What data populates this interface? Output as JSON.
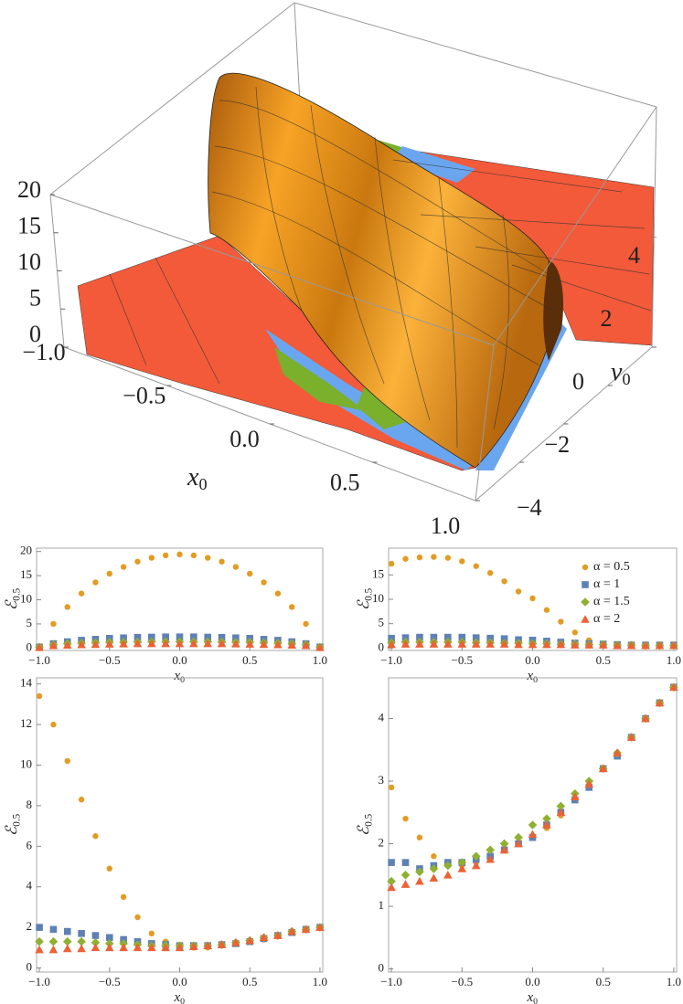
{
  "chart_data": [
    {
      "type": "surface3d",
      "xlim": [
        -1,
        1
      ],
      "xticks": [
        {
          "value": -1,
          "label": "−1.0"
        },
        {
          "value": -0.5,
          "label": "−0.5"
        },
        {
          "value": 0,
          "label": "0.0"
        },
        0.5,
        {
          "value": 1,
          "label": "1.0"
        }
      ],
      "ylim": [
        -4,
        4
      ],
      "yticks": [
        {
          "value": -4,
          "label": "−4"
        },
        {
          "value": -2,
          "label": "−2"
        },
        0,
        2,
        4
      ],
      "zlim": [
        0,
        20
      ],
      "zticks": [
        0,
        5,
        10,
        15,
        20
      ],
      "xlabel": "x",
      "xlabel_sub": "0",
      "ylabel": "v",
      "ylabel_sub": "0"
    },
    {
      "type": "scatter",
      "x": [
        -1,
        -0.9,
        -0.8,
        -0.7,
        -0.6,
        -0.5,
        -0.4,
        -0.3,
        -0.2,
        -0.1,
        0,
        0.1,
        0.2,
        0.3,
        0.4,
        0.5,
        0.6,
        0.7,
        0.8,
        0.9,
        1
      ],
      "xlim": [
        -1.02,
        1.02
      ],
      "xticks": [
        {
          "value": -1,
          "label": "−1.0"
        },
        {
          "value": -0.5,
          "label": "−0.5"
        },
        {
          "value": 0,
          "label": "0.0"
        },
        0.5,
        {
          "value": 1,
          "label": "1.0"
        }
      ],
      "ylim": [
        -0.5,
        20.7
      ],
      "yticks": [
        0,
        5,
        10,
        15,
        20
      ],
      "xlabel": "x",
      "xlabel_sub": "0",
      "ylabel": "ℰ",
      "ylabel_sub": "0.5",
      "series": [
        {
          "color": "#e19c24",
          "marker": "circle",
          "values": [
            0.2,
            5.0,
            8.5,
            11.3,
            13.6,
            15.4,
            16.8,
            17.9,
            18.7,
            19.2,
            19.4,
            19.2,
            18.7,
            17.9,
            16.8,
            15.4,
            13.6,
            11.3,
            8.5,
            5.0,
            0.2
          ]
        },
        {
          "color": "#5e81b5",
          "marker": "square",
          "values": [
            0.2,
            0.9,
            1.3,
            1.6,
            1.8,
            2.0,
            2.1,
            2.2,
            2.25,
            2.3,
            2.3,
            2.3,
            2.25,
            2.2,
            2.1,
            2.0,
            1.8,
            1.6,
            1.3,
            0.9,
            0.2
          ]
        },
        {
          "color": "#8fb032",
          "marker": "diamond",
          "values": [
            0.2,
            0.7,
            0.9,
            1.0,
            1.1,
            1.2,
            1.2,
            1.25,
            1.3,
            1.3,
            1.3,
            1.3,
            1.3,
            1.25,
            1.2,
            1.2,
            1.1,
            1.0,
            0.9,
            0.7,
            0.2
          ]
        },
        {
          "color": "#eb6235",
          "marker": "triangle",
          "values": [
            0.1,
            0.5,
            0.6,
            0.7,
            0.75,
            0.8,
            0.85,
            0.9,
            0.9,
            0.9,
            0.9,
            0.9,
            0.9,
            0.9,
            0.85,
            0.8,
            0.75,
            0.7,
            0.6,
            0.5,
            0.1
          ]
        }
      ]
    },
    {
      "type": "scatter",
      "x": [
        -1,
        -0.9,
        -0.8,
        -0.7,
        -0.6,
        -0.5,
        -0.4,
        -0.3,
        -0.2,
        -0.1,
        0,
        0.1,
        0.2,
        0.3,
        0.4,
        0.5,
        0.6,
        0.7,
        0.8,
        0.9,
        1
      ],
      "xlim": [
        -1.02,
        1.02
      ],
      "xticks": [
        {
          "value": -1,
          "label": "−1.0"
        },
        {
          "value": -0.5,
          "label": "−0.5"
        },
        {
          "value": 0,
          "label": "0.0"
        },
        0.5,
        {
          "value": 1,
          "label": "1.0"
        }
      ],
      "ylim": [
        -0.5,
        20.5
      ],
      "yticks": [
        0,
        5,
        10,
        15
      ],
      "xlabel": "x",
      "xlabel_sub": "0",
      "ylabel": "ℰ",
      "ylabel_sub": "0.5",
      "legend": "top-right",
      "series": [
        {
          "name": "α = 0.5",
          "color": "#e19c24",
          "marker": "circle",
          "values": [
            17.3,
            18.3,
            18.6,
            18.7,
            18.5,
            17.8,
            16.8,
            15.4,
            13.7,
            11.6,
            10.2,
            7.8,
            5.4,
            3.2,
            1.6,
            0.9,
            0.7,
            0.6,
            0.5,
            0.5,
            0.5
          ]
        },
        {
          "name": "α = 1",
          "color": "#5e81b5",
          "marker": "square",
          "values": [
            2.0,
            2.1,
            2.2,
            2.2,
            2.2,
            2.2,
            2.1,
            2.0,
            1.9,
            1.7,
            1.6,
            1.4,
            1.2,
            1.0,
            0.9,
            0.8,
            0.7,
            0.6,
            0.6,
            0.6,
            0.6
          ]
        },
        {
          "name": "α = 1.5",
          "color": "#8fb032",
          "marker": "diamond",
          "values": [
            1.1,
            1.2,
            1.2,
            1.2,
            1.2,
            1.2,
            1.1,
            1.1,
            1.0,
            1.0,
            0.9,
            0.9,
            0.8,
            0.8,
            0.7,
            0.7,
            0.6,
            0.6,
            0.5,
            0.5,
            0.5
          ]
        },
        {
          "name": "α = 2",
          "color": "#eb6235",
          "marker": "triangle",
          "values": [
            0.7,
            0.8,
            0.8,
            0.8,
            0.8,
            0.8,
            0.8,
            0.8,
            0.8,
            0.7,
            0.7,
            0.7,
            0.7,
            0.6,
            0.6,
            0.6,
            0.5,
            0.5,
            0.5,
            0.5,
            0.5
          ]
        }
      ]
    },
    {
      "type": "scatter",
      "x": [
        -1,
        -0.9,
        -0.8,
        -0.7,
        -0.6,
        -0.5,
        -0.4,
        -0.3,
        -0.2,
        -0.1,
        0,
        0.1,
        0.2,
        0.3,
        0.4,
        0.5,
        0.6,
        0.7,
        0.8,
        0.9,
        1
      ],
      "xlim": [
        -1.02,
        1.02
      ],
      "xticks": [
        {
          "value": -1,
          "label": "−1.0"
        },
        {
          "value": -0.5,
          "label": "−0.5"
        },
        {
          "value": 0,
          "label": "0.0"
        },
        0.5,
        {
          "value": 1,
          "label": "1.0"
        }
      ],
      "ylim": [
        -0.2,
        14.3
      ],
      "yticks": [
        0,
        2,
        4,
        6,
        8,
        10,
        12,
        14
      ],
      "xlabel": "x",
      "xlabel_sub": "0",
      "ylabel": "ℰ",
      "ylabel_sub": "0.5",
      "series": [
        {
          "color": "#e19c24",
          "marker": "circle",
          "values": [
            13.4,
            12.0,
            10.2,
            8.3,
            6.5,
            4.9,
            3.5,
            2.5,
            1.7,
            1.3,
            1.1,
            1.0,
            1.0,
            1.1,
            1.2,
            1.3,
            1.4,
            1.6,
            1.8,
            1.9,
            2.0
          ]
        },
        {
          "color": "#5e81b5",
          "marker": "square",
          "values": [
            2.0,
            1.9,
            1.8,
            1.7,
            1.6,
            1.5,
            1.4,
            1.3,
            1.2,
            1.15,
            1.1,
            1.1,
            1.1,
            1.15,
            1.2,
            1.3,
            1.45,
            1.6,
            1.75,
            1.9,
            2.0
          ]
        },
        {
          "color": "#8fb032",
          "marker": "diamond",
          "values": [
            1.3,
            1.3,
            1.3,
            1.3,
            1.25,
            1.2,
            1.2,
            1.15,
            1.1,
            1.1,
            1.1,
            1.1,
            1.1,
            1.15,
            1.25,
            1.35,
            1.5,
            1.6,
            1.8,
            1.9,
            2.0
          ]
        },
        {
          "color": "#eb6235",
          "marker": "triangle",
          "values": [
            0.9,
            0.9,
            0.95,
            0.95,
            1.0,
            1.0,
            1.0,
            1.0,
            1.0,
            1.0,
            1.0,
            1.05,
            1.1,
            1.15,
            1.25,
            1.35,
            1.5,
            1.6,
            1.8,
            1.9,
            2.0
          ]
        }
      ]
    },
    {
      "type": "scatter",
      "x": [
        -1,
        -0.9,
        -0.8,
        -0.7,
        -0.6,
        -0.5,
        -0.4,
        -0.3,
        -0.2,
        -0.1,
        0,
        0.1,
        0.2,
        0.3,
        0.4,
        0.5,
        0.6,
        0.7,
        0.8,
        0.9,
        1
      ],
      "xlim": [
        -1.02,
        1.02
      ],
      "xticks": [
        {
          "value": -1,
          "label": "−1.0"
        },
        {
          "value": -0.5,
          "label": "−0.5"
        },
        {
          "value": 0,
          "label": "0.0"
        },
        0.5,
        {
          "value": 1,
          "label": "1.0"
        }
      ],
      "ylim": [
        -0.05,
        4.65
      ],
      "yticks": [
        0,
        1,
        2,
        3,
        4
      ],
      "xlabel": "x",
      "xlabel_sub": "0",
      "ylabel": "ℰ",
      "ylabel_sub": "0.5",
      "series": [
        {
          "color": "#e19c24",
          "marker": "circle",
          "values": [
            2.9,
            2.4,
            2.1,
            1.8,
            1.7,
            1.65,
            1.7,
            1.8,
            1.9,
            2.0,
            2.1,
            2.25,
            2.45,
            2.7,
            2.95,
            3.2,
            3.45,
            3.7,
            4.0,
            4.25,
            4.5
          ]
        },
        {
          "color": "#5e81b5",
          "marker": "square",
          "values": [
            1.7,
            1.7,
            1.6,
            1.65,
            1.7,
            1.7,
            1.75,
            1.8,
            1.9,
            2.0,
            2.1,
            2.3,
            2.5,
            2.7,
            2.9,
            3.2,
            3.4,
            3.7,
            4.0,
            4.25,
            4.5
          ]
        },
        {
          "color": "#8fb032",
          "marker": "diamond",
          "values": [
            1.4,
            1.5,
            1.55,
            1.6,
            1.65,
            1.7,
            1.8,
            1.9,
            2.0,
            2.1,
            2.3,
            2.4,
            2.6,
            2.8,
            3.0,
            3.2,
            3.45,
            3.7,
            4.0,
            4.25,
            4.5
          ]
        },
        {
          "color": "#eb6235",
          "marker": "triangle",
          "values": [
            1.3,
            1.35,
            1.4,
            1.45,
            1.5,
            1.6,
            1.65,
            1.75,
            1.9,
            2.0,
            2.15,
            2.3,
            2.5,
            2.75,
            2.95,
            3.2,
            3.45,
            3.7,
            4.0,
            4.25,
            4.5
          ]
        }
      ]
    }
  ]
}
